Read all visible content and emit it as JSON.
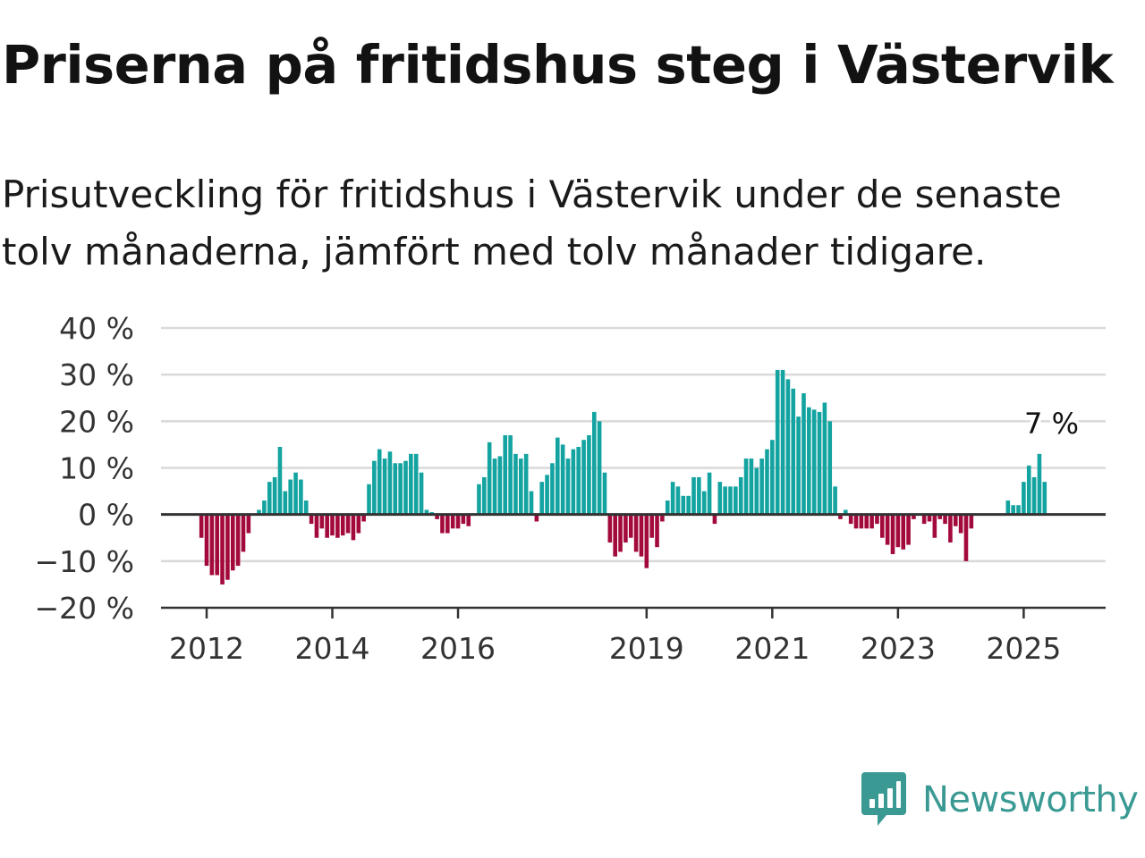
{
  "title": "Priserna på fritidshus steg i Västervik",
  "subtitle": "Prisutveckling för fritidshus i Västervik under de senaste tolv månaderna, jämfört med tolv månader tidigare.",
  "logo": {
    "text": "Newsworthy",
    "icon": "bar-chart-speech-bubble-icon",
    "color": "#3a9a93"
  },
  "colors": {
    "positive": "#13a3a0",
    "negative": "#a30a3c",
    "grid": "#d9d9d9",
    "axis": "#333333"
  },
  "chart_data": {
    "type": "bar",
    "start": "2011-12",
    "end": "2025-07",
    "x_ticks": [
      "2012",
      "2014",
      "2016",
      "2019",
      "2021",
      "2023",
      "2025"
    ],
    "y_ticks": [
      "40 %",
      "30 %",
      "20 %",
      "10 %",
      "0 %",
      "−10 %",
      "−20 %"
    ],
    "ylim": [
      -20,
      40
    ],
    "grid": true,
    "annotation": {
      "label": "7 %",
      "date": "2025-07",
      "value": 7
    },
    "values": [
      -5,
      -11,
      -13,
      -13,
      -15,
      -14,
      -12,
      -11,
      -8,
      -4,
      0,
      1,
      3,
      7,
      8,
      14.5,
      5,
      7.5,
      9,
      7.5,
      3,
      -2,
      -5,
      -3,
      -5,
      -4.5,
      -5,
      -4.5,
      -4,
      -5.5,
      -4,
      -1.5,
      6.5,
      11.5,
      14,
      12,
      13.5,
      11,
      11,
      11.5,
      13,
      13,
      9,
      1,
      0.5,
      -1,
      -4,
      -4,
      -3,
      -3,
      -2,
      -2.5,
      0,
      6.5,
      8,
      15.5,
      12,
      12.5,
      17,
      17,
      13,
      12,
      13,
      5,
      -1.5,
      7,
      8.5,
      11,
      16.5,
      15,
      12,
      14,
      14.5,
      16,
      17,
      22,
      20,
      9,
      -6,
      -9,
      -8,
      -6,
      -5,
      -8,
      -9,
      -11.5,
      -5,
      -7,
      -1.5,
      3,
      7,
      6,
      4,
      4,
      8,
      8,
      5,
      9,
      -2,
      7,
      6,
      6,
      6,
      8,
      12,
      12,
      10,
      12,
      14,
      16,
      31,
      31,
      29,
      27,
      21,
      26,
      23,
      22.5,
      22,
      24,
      20,
      6,
      -1,
      1,
      -2,
      -3,
      -3,
      -3,
      -3,
      -2,
      -5,
      -6.5,
      -8.5,
      -7,
      -7.5,
      -6.5,
      -1,
      0,
      -2,
      -1.5,
      -5,
      -1,
      -2,
      -6,
      -2.5,
      -4,
      -10,
      -3,
      0,
      0,
      0,
      0,
      0,
      0,
      3,
      2,
      2,
      7,
      10.5,
      8,
      13,
      7
    ]
  }
}
